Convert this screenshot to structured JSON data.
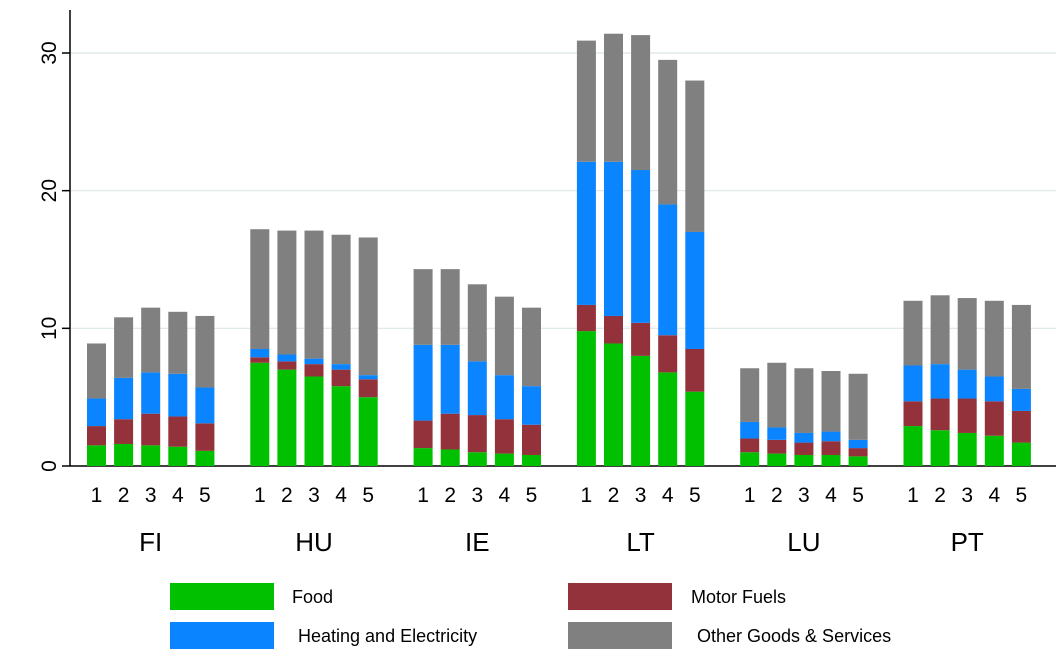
{
  "chart_data": {
    "type": "bar",
    "stacked": true,
    "ylim": [
      0,
      32.5
    ],
    "yticks": [
      0,
      10,
      20,
      30
    ],
    "grid": true,
    "legend_position": "bottom",
    "groups": [
      "FI",
      "HU",
      "IE",
      "LT",
      "LU",
      "PT"
    ],
    "subcategories": [
      "1",
      "2",
      "3",
      "4",
      "5"
    ],
    "series": [
      {
        "name": "Food",
        "color": "#00c000",
        "values": [
          [
            1.5,
            1.6,
            1.5,
            1.4,
            1.1
          ],
          [
            7.5,
            7.0,
            6.5,
            5.8,
            5.0
          ],
          [
            1.3,
            1.2,
            1.0,
            0.9,
            0.8
          ],
          [
            9.8,
            8.9,
            8.0,
            6.8,
            5.4
          ],
          [
            1.0,
            0.9,
            0.8,
            0.8,
            0.7
          ],
          [
            2.9,
            2.6,
            2.4,
            2.2,
            1.7
          ]
        ]
      },
      {
        "name": "Motor Fuels",
        "color": "#93323b",
        "values": [
          [
            1.4,
            1.8,
            2.3,
            2.2,
            2.0
          ],
          [
            0.4,
            0.6,
            0.9,
            1.2,
            1.3
          ],
          [
            2.0,
            2.6,
            2.7,
            2.5,
            2.2
          ],
          [
            1.9,
            2.0,
            2.4,
            2.7,
            3.1
          ],
          [
            1.0,
            1.0,
            0.9,
            1.0,
            0.6
          ],
          [
            1.8,
            2.3,
            2.5,
            2.5,
            2.3
          ]
        ]
      },
      {
        "name": "Heating and Electricity",
        "color": "#0a85ff",
        "values": [
          [
            2.0,
            3.0,
            3.0,
            3.1,
            2.6
          ],
          [
            0.6,
            0.5,
            0.4,
            0.4,
            0.3
          ],
          [
            5.5,
            5.0,
            3.9,
            3.2,
            2.8
          ],
          [
            10.4,
            11.2,
            11.1,
            9.5,
            8.5
          ],
          [
            1.2,
            0.9,
            0.7,
            0.7,
            0.6
          ],
          [
            2.6,
            2.5,
            2.1,
            1.8,
            1.6
          ]
        ]
      },
      {
        "name": "Other Goods & Services",
        "color": "#808080",
        "values": [
          [
            4.0,
            4.4,
            4.7,
            4.5,
            5.2
          ],
          [
            8.7,
            9.0,
            9.3,
            9.4,
            10.0
          ],
          [
            5.5,
            5.5,
            5.6,
            5.7,
            5.7
          ],
          [
            8.8,
            9.3,
            9.8,
            10.5,
            11.0
          ],
          [
            3.9,
            4.7,
            4.7,
            4.4,
            4.8
          ],
          [
            4.7,
            5.0,
            5.2,
            5.5,
            6.1
          ]
        ]
      }
    ]
  },
  "legend": [
    {
      "label": "Food",
      "color": "#00c000"
    },
    {
      "label": "Motor Fuels",
      "color": "#93323b"
    },
    {
      "label": "Heating and Electricity",
      "color": "#0a85ff"
    },
    {
      "label": "Other Goods & Services",
      "color": "#808080"
    }
  ]
}
